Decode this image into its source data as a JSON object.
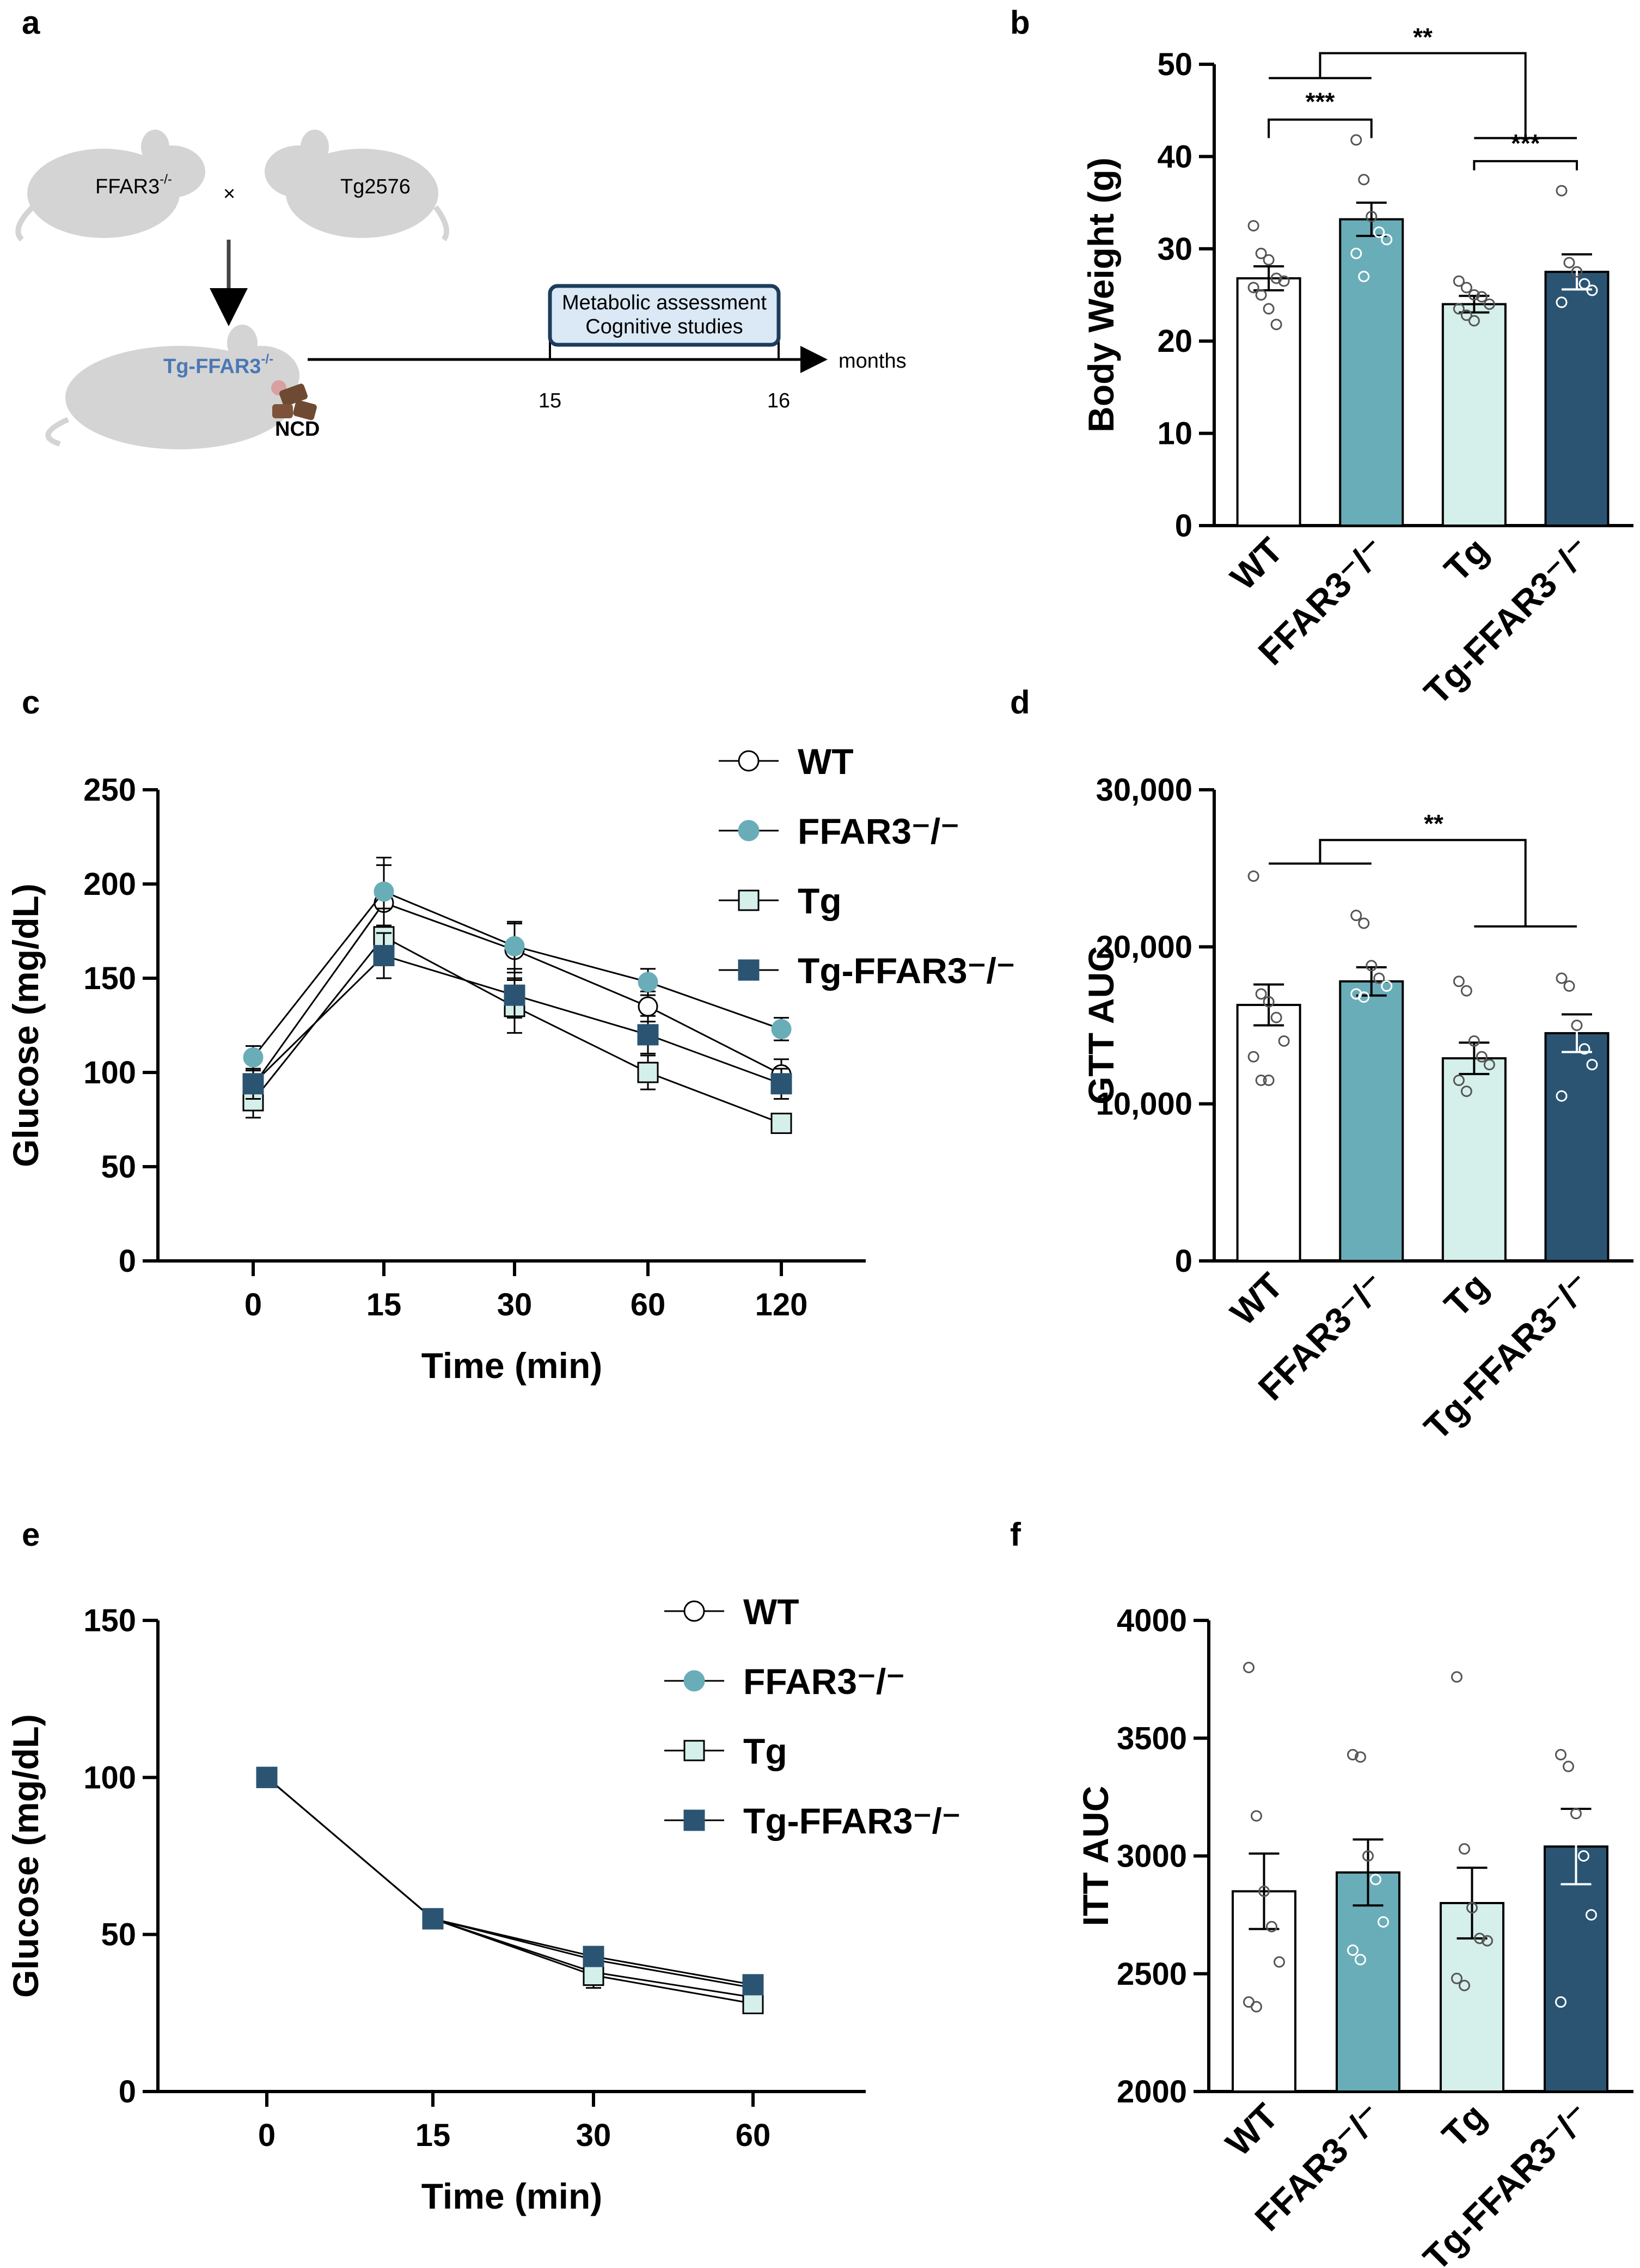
{
  "panel_labels": {
    "a": "a",
    "b": "b",
    "c": "c",
    "d": "d",
    "e": "e",
    "f": "f"
  },
  "schematic": {
    "mouse1": "FFAR3",
    "mouse1_sup": "-/-",
    "cross": "×",
    "mouse2": "Tg2576",
    "offspring": "Tg-FFAR3",
    "offspring_sup": "-/-",
    "diet": "NCD",
    "box_line1": "Metabolic assessment",
    "box_line2": "Cognitive studies",
    "t1": "15",
    "t2": "16",
    "axis_unit": "months"
  },
  "colors": {
    "WT": "#ffffff",
    "FFAR3": "#69adb9",
    "Tg": "#d5efea",
    "TgFFAR3": "#2b5472"
  },
  "chart_data": [
    {
      "id": "b",
      "type": "bar",
      "categories": [
        "WT",
        "FFAR3⁻/⁻",
        "Tg",
        "Tg-FFAR3⁻/⁻"
      ],
      "values": [
        26.8,
        33.2,
        24.0,
        27.5
      ],
      "errors": [
        1.3,
        1.8,
        0.9,
        1.9
      ],
      "points": [
        [
          32.5,
          29.5,
          28.8,
          26.8,
          26.5,
          25.8,
          25.0,
          23.5,
          21.8
        ],
        [
          41.8,
          37.5,
          33.5,
          31.8,
          31.0,
          29.5,
          27.0
        ],
        [
          26.5,
          25.8,
          25.0,
          24.8,
          24.0,
          23.5,
          22.8,
          22.2
        ],
        [
          36.3,
          28.5,
          27.5,
          26.2,
          25.5,
          24.2
        ]
      ],
      "ylabel": "Body Weight (g)",
      "ylim": [
        0,
        50
      ],
      "yticks": [
        "0",
        "10",
        "20",
        "30",
        "40",
        "50"
      ],
      "significance": [
        "***",
        "***",
        "**"
      ]
    },
    {
      "id": "c",
      "type": "line",
      "x": [
        "0",
        "15",
        "30",
        "60",
        "120"
      ],
      "series": [
        {
          "name": "WT",
          "values": [
            93,
            190,
            165,
            135,
            99
          ],
          "errors": [
            8,
            20,
            15,
            8,
            8
          ]
        },
        {
          "name": "FFAR3⁻/⁻",
          "values": [
            108,
            196,
            167,
            148,
            123
          ],
          "errors": [
            6,
            18,
            12,
            7,
            6
          ]
        },
        {
          "name": "Tg",
          "values": [
            85,
            172,
            135,
            100,
            73
          ],
          "errors": [
            9,
            15,
            14,
            9,
            5
          ]
        },
        {
          "name": "Tg-FFAR3⁻/⁻",
          "values": [
            94,
            162,
            141,
            120,
            94
          ],
          "errors": [
            8,
            12,
            12,
            10,
            8
          ]
        }
      ],
      "xlabel": "Time (min)",
      "ylabel": "Glucose (mg/dL)",
      "ylim": [
        0,
        250
      ],
      "yticks": [
        "0",
        "50",
        "100",
        "150",
        "200",
        "250"
      ],
      "legend": [
        "WT",
        "FFAR3⁻/⁻",
        "Tg",
        "Tg-FFAR3⁻/⁻"
      ]
    },
    {
      "id": "d",
      "type": "bar",
      "categories": [
        "WT",
        "FFAR3⁻/⁻",
        "Tg",
        "Tg-FFAR3⁻/⁻"
      ],
      "values": [
        16300,
        17800,
        12900,
        14500
      ],
      "errors": [
        1300,
        900,
        1000,
        1200
      ],
      "points": [
        [
          24500,
          17000,
          16500,
          15500,
          14000,
          13000,
          11500,
          11500
        ],
        [
          22000,
          21500,
          18800,
          18000,
          17500,
          17000,
          16800
        ],
        [
          17800,
          17200,
          14000,
          13000,
          12500,
          11500,
          10800
        ],
        [
          18000,
          17500,
          15000,
          13500,
          12500,
          10500
        ]
      ],
      "ylabel": "GTT AUC",
      "ylim": [
        0,
        30000
      ],
      "yticks": [
        "0",
        "10,000",
        "20,000",
        "30,000"
      ],
      "significance": [
        "**"
      ]
    },
    {
      "id": "e",
      "type": "line",
      "x": [
        "0",
        "15",
        "30",
        "60"
      ],
      "series": [
        {
          "name": "WT",
          "values": [
            100,
            55,
            38,
            30
          ],
          "errors": [
            0,
            2,
            4,
            3
          ]
        },
        {
          "name": "FFAR3⁻/⁻",
          "values": [
            100,
            55,
            42,
            33
          ],
          "errors": [
            0,
            2,
            3,
            3
          ]
        },
        {
          "name": "Tg",
          "values": [
            100,
            55,
            37,
            28
          ],
          "errors": [
            0,
            2,
            4,
            3
          ]
        },
        {
          "name": "Tg-FFAR3⁻/⁻",
          "values": [
            100,
            55,
            43,
            34
          ],
          "errors": [
            0,
            2,
            3,
            3
          ]
        }
      ],
      "xlabel": "Time (min)",
      "ylabel": "Glucose (mg/dL)",
      "ylim": [
        0,
        150
      ],
      "yticks": [
        "0",
        "50",
        "100",
        "150"
      ],
      "legend": [
        "WT",
        "FFAR3⁻/⁻",
        "Tg",
        "Tg-FFAR3⁻/⁻"
      ]
    },
    {
      "id": "f",
      "type": "bar",
      "categories": [
        "WT",
        "FFAR3⁻/⁻",
        "Tg",
        "Tg-FFAR3⁻/⁻"
      ],
      "values": [
        2850,
        2930,
        2800,
        3040
      ],
      "errors": [
        160,
        140,
        150,
        160
      ],
      "points": [
        [
          3800,
          3170,
          2850,
          2700,
          2550,
          2380,
          2360
        ],
        [
          3430,
          3420,
          3000,
          2900,
          2720,
          2600,
          2560
        ],
        [
          3760,
          3030,
          2780,
          2650,
          2640,
          2480,
          2450
        ],
        [
          3430,
          3380,
          3180,
          3000,
          2750,
          2380
        ]
      ],
      "ylabel": "ITT AUC",
      "ylim": [
        2000,
        4000
      ],
      "yticks": [
        "2000",
        "2500",
        "3000",
        "3500",
        "4000"
      ],
      "significance": []
    }
  ]
}
